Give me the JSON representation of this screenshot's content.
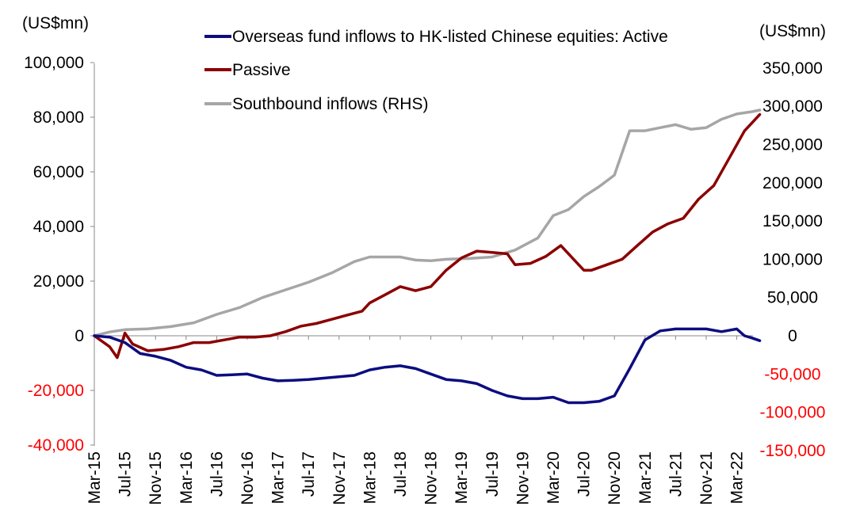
{
  "chart_data": {
    "type": "line",
    "left_unit": "(US$mn)",
    "right_unit": "(US$mn)",
    "legend_position": "top",
    "grid": false,
    "x_ticks": [
      "Mar-15",
      "Jul-15",
      "Nov-15",
      "Mar-16",
      "Jul-16",
      "Nov-16",
      "Mar-17",
      "Jul-17",
      "Nov-17",
      "Mar-18",
      "Jul-18",
      "Nov-18",
      "Mar-19",
      "Jul-19",
      "Nov-19",
      "Mar-20",
      "Jul-20",
      "Nov-20",
      "Mar-21",
      "Jul-21",
      "Nov-21",
      "Mar-22"
    ],
    "left_axis": {
      "range": [
        -40000,
        100000
      ],
      "ticks": [
        100000,
        80000,
        60000,
        40000,
        20000,
        0,
        -20000,
        -40000
      ],
      "tick_labels": [
        "100,000",
        "80,000",
        "60,000",
        "40,000",
        "20,000",
        "0",
        "-20,000",
        "-40,000"
      ]
    },
    "right_axis": {
      "range": [
        -150000,
        350000
      ],
      "ticks": [
        350000,
        300000,
        250000,
        200000,
        150000,
        100000,
        50000,
        0,
        -50000,
        -100000,
        -150000
      ],
      "tick_labels": [
        "350,000",
        "300,000",
        "250,000",
        "200,000",
        "150,000",
        "100,000",
        "50,000",
        "0",
        "-50,000",
        "-100,000",
        "-150,000"
      ],
      "negative_color": "#ff0000"
    },
    "series": [
      {
        "name": "Overseas fund inflows to HK-listed Chinese equities: Active",
        "axis": "left",
        "color": "#0d0d80",
        "points": [
          [
            "2015-03",
            0
          ],
          [
            "2015-05",
            -500
          ],
          [
            "2015-07",
            -2500
          ],
          [
            "2015-09",
            -6500
          ],
          [
            "2015-11",
            -7500
          ],
          [
            "2016-01",
            -9000
          ],
          [
            "2016-03",
            -11500
          ],
          [
            "2016-05",
            -12500
          ],
          [
            "2016-07",
            -14500
          ],
          [
            "2016-09",
            -14300
          ],
          [
            "2016-11",
            -14000
          ],
          [
            "2017-01",
            -15500
          ],
          [
            "2017-03",
            -16500
          ],
          [
            "2017-05",
            -16300
          ],
          [
            "2017-07",
            -16000
          ],
          [
            "2017-09",
            -15500
          ],
          [
            "2017-11",
            -15000
          ],
          [
            "2018-01",
            -14500
          ],
          [
            "2018-03",
            -12500
          ],
          [
            "2018-05",
            -11500
          ],
          [
            "2018-07",
            -11000
          ],
          [
            "2018-09",
            -12000
          ],
          [
            "2018-11",
            -14000
          ],
          [
            "2019-01",
            -16000
          ],
          [
            "2019-03",
            -16500
          ],
          [
            "2019-05",
            -17500
          ],
          [
            "2019-07",
            -20000
          ],
          [
            "2019-09",
            -22000
          ],
          [
            "2019-11",
            -23000
          ],
          [
            "2020-01",
            -23000
          ],
          [
            "2020-03",
            -22500
          ],
          [
            "2020-05",
            -24500
          ],
          [
            "2020-07",
            -24500
          ],
          [
            "2020-09",
            -24000
          ],
          [
            "2020-11",
            -22000
          ],
          [
            "2021-01",
            -12000
          ],
          [
            "2021-03",
            -1500
          ],
          [
            "2021-05",
            1800
          ],
          [
            "2021-07",
            2500
          ],
          [
            "2021-09",
            2500
          ],
          [
            "2021-11",
            2500
          ],
          [
            "2022-01",
            1500
          ],
          [
            "2022-03",
            2500
          ],
          [
            "2022-04",
            0
          ],
          [
            "2022-05",
            -800
          ],
          [
            "2022-06",
            -1800
          ]
        ]
      },
      {
        "name": "Passive",
        "axis": "left",
        "color": "#8b0000",
        "points": [
          [
            "2015-03",
            0
          ],
          [
            "2015-05",
            -4000
          ],
          [
            "2015-06",
            -8000
          ],
          [
            "2015-07",
            1000
          ],
          [
            "2015-08",
            -3000
          ],
          [
            "2015-10",
            -5500
          ],
          [
            "2015-12",
            -5000
          ],
          [
            "2016-02",
            -4000
          ],
          [
            "2016-04",
            -2500
          ],
          [
            "2016-06",
            -2500
          ],
          [
            "2016-08",
            -1500
          ],
          [
            "2016-10",
            -500
          ],
          [
            "2016-12",
            -500
          ],
          [
            "2017-02",
            0
          ],
          [
            "2017-04",
            1500
          ],
          [
            "2017-06",
            3500
          ],
          [
            "2017-08",
            4500
          ],
          [
            "2017-10",
            6000
          ],
          [
            "2017-12",
            7500
          ],
          [
            "2018-02",
            9000
          ],
          [
            "2018-03",
            12000
          ],
          [
            "2018-05",
            15000
          ],
          [
            "2018-07",
            18000
          ],
          [
            "2018-09",
            16500
          ],
          [
            "2018-11",
            18000
          ],
          [
            "2019-01",
            24000
          ],
          [
            "2019-03",
            28500
          ],
          [
            "2019-05",
            31000
          ],
          [
            "2019-07",
            30500
          ],
          [
            "2019-09",
            30000
          ],
          [
            "2019-10",
            26000
          ],
          [
            "2019-12",
            26500
          ],
          [
            "2020-02",
            29000
          ],
          [
            "2020-04",
            33000
          ],
          [
            "2020-06",
            27000
          ],
          [
            "2020-07",
            24000
          ],
          [
            "2020-08",
            24000
          ],
          [
            "2020-10",
            26000
          ],
          [
            "2020-12",
            28000
          ],
          [
            "2021-02",
            33000
          ],
          [
            "2021-04",
            38000
          ],
          [
            "2021-06",
            41000
          ],
          [
            "2021-08",
            43000
          ],
          [
            "2021-10",
            50000
          ],
          [
            "2021-12",
            55000
          ],
          [
            "2022-02",
            65000
          ],
          [
            "2022-04",
            75000
          ],
          [
            "2022-06",
            81000
          ]
        ]
      },
      {
        "name": "Southbound inflows (RHS)",
        "axis": "right",
        "color": "#a6a6a6",
        "points": [
          [
            "2015-03",
            0
          ],
          [
            "2015-05",
            5000
          ],
          [
            "2015-07",
            8000
          ],
          [
            "2015-10",
            9000
          ],
          [
            "2016-01",
            12000
          ],
          [
            "2016-04",
            17000
          ],
          [
            "2016-07",
            28000
          ],
          [
            "2016-10",
            37000
          ],
          [
            "2017-01",
            50000
          ],
          [
            "2017-04",
            60000
          ],
          [
            "2017-07",
            70000
          ],
          [
            "2017-10",
            82000
          ],
          [
            "2018-01",
            97000
          ],
          [
            "2018-03",
            103000
          ],
          [
            "2018-05",
            103000
          ],
          [
            "2018-07",
            103000
          ],
          [
            "2018-09",
            99000
          ],
          [
            "2018-11",
            98000
          ],
          [
            "2019-01",
            100000
          ],
          [
            "2019-04",
            101000
          ],
          [
            "2019-07",
            103000
          ],
          [
            "2019-10",
            112000
          ],
          [
            "2020-01",
            128000
          ],
          [
            "2020-03",
            157000
          ],
          [
            "2020-05",
            165000
          ],
          [
            "2020-07",
            182000
          ],
          [
            "2020-09",
            195000
          ],
          [
            "2020-11",
            210000
          ],
          [
            "2021-01",
            268000
          ],
          [
            "2021-03",
            268000
          ],
          [
            "2021-05",
            272000
          ],
          [
            "2021-07",
            276000
          ],
          [
            "2021-09",
            270000
          ],
          [
            "2021-11",
            272000
          ],
          [
            "2022-01",
            283000
          ],
          [
            "2022-03",
            290000
          ],
          [
            "2022-05",
            293000
          ],
          [
            "2022-06",
            295000
          ]
        ]
      }
    ]
  }
}
